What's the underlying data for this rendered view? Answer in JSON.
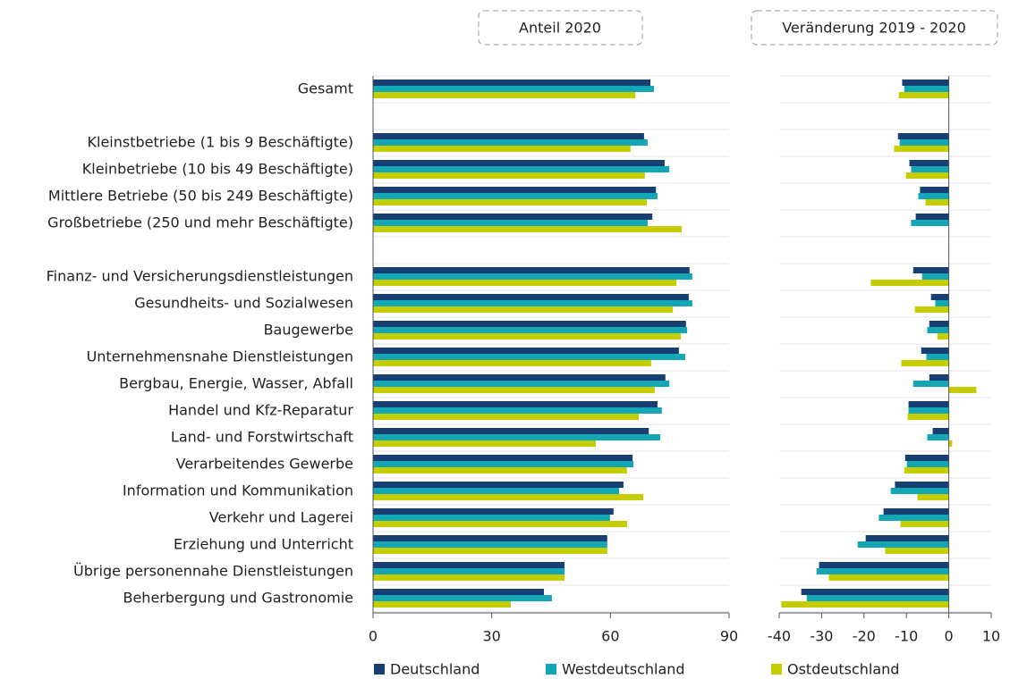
{
  "chart_data": [
    {
      "type": "bar",
      "orientation": "horizontal",
      "title": "Anteil 2020",
      "categories": [
        "Gesamt",
        null,
        "Kleinstbetriebe (1 bis 9 Beschäftigte)",
        "Kleinbetriebe (10 bis 49 Beschäftigte)",
        "Mittlere Betriebe (50 bis 249 Beschäftigte)",
        "Großbetriebe (250 und mehr Beschäftigte)",
        null,
        "Finanz- und Versicherungsdienstleistungen",
        "Gesundheits- und Sozialwesen",
        "Baugewerbe",
        "Unternehmensnahe Dienstleistungen",
        "Bergbau, Energie, Wasser, Abfall",
        "Handel und Kfz-Reparatur",
        "Land- und Forstwirtschaft",
        "Verarbeitendes Gewerbe",
        "Information und Kommunikation",
        "Verkehr und Lagerei",
        "Erziehung und Unterricht",
        "Übrige personennahe Dienstleistungen",
        "Beherbergung und Gastronomie"
      ],
      "series": [
        {
          "name": "Deutschland",
          "color": "#173f73",
          "values": [
            70.1,
            null,
            68.5,
            73.7,
            71.5,
            70.6,
            null,
            80.0,
            79.8,
            79.1,
            77.3,
            73.9,
            71.9,
            69.7,
            65.6,
            63.3,
            60.8,
            59.2,
            48.4,
            43.2
          ]
        },
        {
          "name": "Westdeutschland",
          "color": "#14a6b4",
          "values": [
            71.0,
            null,
            69.4,
            74.9,
            71.9,
            69.4,
            null,
            80.7,
            80.7,
            79.4,
            78.9,
            74.9,
            73.0,
            72.6,
            65.8,
            62.2,
            59.9,
            59.2,
            48.4,
            45.2
          ]
        },
        {
          "name": "Ostdeutschland",
          "color": "#c5cc00",
          "values": [
            66.3,
            null,
            65.1,
            68.7,
            69.2,
            78.0,
            null,
            76.7,
            75.8,
            77.8,
            70.3,
            71.2,
            67.2,
            56.3,
            64.2,
            68.3,
            64.2,
            59.2,
            48.4,
            34.8
          ]
        }
      ],
      "xlim": [
        0,
        90
      ],
      "xticks": [
        0,
        30,
        60,
        90
      ]
    },
    {
      "type": "bar",
      "orientation": "horizontal",
      "title": "Veränderung 2019 - 2020",
      "series": [
        {
          "color": "#173f73",
          "values": [
            -11.0,
            null,
            -12.0,
            -9.3,
            -6.8,
            -7.8,
            null,
            -8.4,
            -4.2,
            -4.6,
            -6.5,
            -4.6,
            -9.5,
            -3.8,
            -10.3,
            -12.7,
            -15.4,
            -19.6,
            -30.6,
            -34.8
          ]
        },
        {
          "color": "#14a6b4",
          "values": [
            -10.5,
            null,
            -11.6,
            -8.9,
            -7.2,
            -8.9,
            null,
            -6.3,
            -3.2,
            -5.1,
            -5.3,
            -8.4,
            -9.5,
            -5.1,
            -9.9,
            -13.7,
            -16.5,
            -21.5,
            -31.2,
            -33.5
          ]
        },
        {
          "color": "#c5cc00",
          "values": [
            -11.8,
            null,
            -12.9,
            -10.1,
            -5.5,
            0,
            null,
            -18.4,
            -8.0,
            -2.7,
            -11.2,
            6.5,
            -9.7,
            0.8,
            -10.5,
            -7.4,
            -11.4,
            -15.0,
            -28.3,
            -39.5
          ]
        }
      ],
      "xlim": [
        -40,
        10
      ],
      "xticks": [
        -40,
        -30,
        -20,
        -10,
        0,
        10
      ]
    }
  ]
}
